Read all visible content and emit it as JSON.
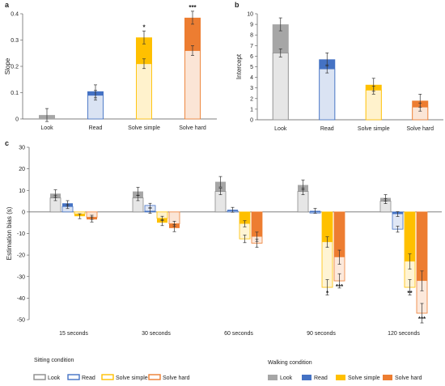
{
  "chart_data": [
    {
      "panel": "a",
      "type": "bar",
      "ylabel": "Slope",
      "ylim": [
        0,
        0.4
      ],
      "yticks": [
        "0",
        "0.1",
        "0.2",
        "0.3",
        "0.4"
      ],
      "categories": [
        "Look",
        "Read",
        "Solve simple",
        "Solve hard"
      ],
      "series": [
        {
          "name": "Sitting condition",
          "values": [
            0.0,
            0.09,
            0.21,
            0.26
          ]
        },
        {
          "name": "Walking condition",
          "values": [
            0.015,
            0.105,
            0.31,
            0.385
          ]
        }
      ],
      "annotations": [
        {
          "category": "Solve simple",
          "text": "*"
        },
        {
          "category": "Solve hard",
          "text": "***"
        }
      ],
      "colors": {
        "Look": {
          "fill": "#a6a6a6",
          "light": "#e6e6e6",
          "edge": "#8c8c8c"
        },
        "Read": {
          "fill": "#4472c4",
          "light": "#dae3f3",
          "edge": "#4472c4"
        },
        "Solve simple": {
          "fill": "#ffc000",
          "light": "#fff2cc",
          "edge": "#ffc000"
        },
        "Solve hard": {
          "fill": "#ed7d31",
          "light": "#fbe5d6",
          "edge": "#ed7d31"
        }
      }
    },
    {
      "panel": "b",
      "type": "bar",
      "ylabel": "Intercept",
      "ylim": [
        0,
        10
      ],
      "yticks": [
        "0",
        "1",
        "2",
        "3",
        "4",
        "5",
        "6",
        "7",
        "8",
        "9",
        "10"
      ],
      "categories": [
        "Look",
        "Read",
        "Solve simple",
        "Solve hard"
      ],
      "series": [
        {
          "name": "Sitting condition",
          "values": [
            6.3,
            4.8,
            2.8,
            1.2
          ]
        },
        {
          "name": "Walking condition",
          "values": [
            9.0,
            5.7,
            3.3,
            1.8
          ]
        }
      ]
    },
    {
      "panel": "c",
      "type": "bar",
      "ylabel": "Estimation bias (s)",
      "ylim": [
        -50,
        30
      ],
      "yticks": [
        "-50",
        "-40",
        "-30",
        "-20",
        "-10",
        "0",
        "10",
        "20",
        "30"
      ],
      "categories": [
        "15 seconds",
        "30 seconds",
        "60 seconds",
        "90 seconds",
        "120 seconds"
      ],
      "conditions": [
        "Look",
        "Read",
        "Solve simple",
        "Solve hard"
      ],
      "series": [
        {
          "name": "Sitting condition",
          "values": {
            "Look": [
              6.5,
              6.5,
              9.5,
              9.5,
              5.0
            ],
            "Read": [
              2.5,
              3.0,
              0.5,
              -0.5,
              -8.0
            ],
            "Solve simple": [
              -1.0,
              -3.0,
              -12.5,
              -35.0,
              -35.0
            ],
            "Solve hard": [
              -2.5,
              -5.5,
              -14.5,
              -32.0,
              -47.0
            ]
          }
        },
        {
          "name": "Walking condition",
          "values": {
            "Look": [
              8.5,
              9.5,
              14.0,
              12.5,
              6.5
            ],
            "Read": [
              4.0,
              0.5,
              1.0,
              0.5,
              -1.0
            ],
            "Solve simple": [
              -2.0,
              -5.0,
              -5.5,
              -14.0,
              -23.0
            ],
            "Solve hard": [
              -3.5,
              -7.5,
              -11.5,
              -21.0,
              -32.0
            ]
          }
        }
      ],
      "annotations": [
        {
          "category": "90 seconds",
          "condition": "Solve simple",
          "text": "*"
        },
        {
          "category": "90 seconds",
          "condition": "Solve hard",
          "text": "***"
        },
        {
          "category": "120 seconds",
          "condition": "Solve simple",
          "text": "**"
        },
        {
          "category": "120 seconds",
          "condition": "Solve hard",
          "text": "***"
        }
      ]
    }
  ],
  "legend": {
    "sitting_title": "Sitting condition",
    "walking_title": "Walking condition",
    "items": [
      "Look",
      "Read",
      "Solve simple",
      "Solve hard"
    ]
  }
}
